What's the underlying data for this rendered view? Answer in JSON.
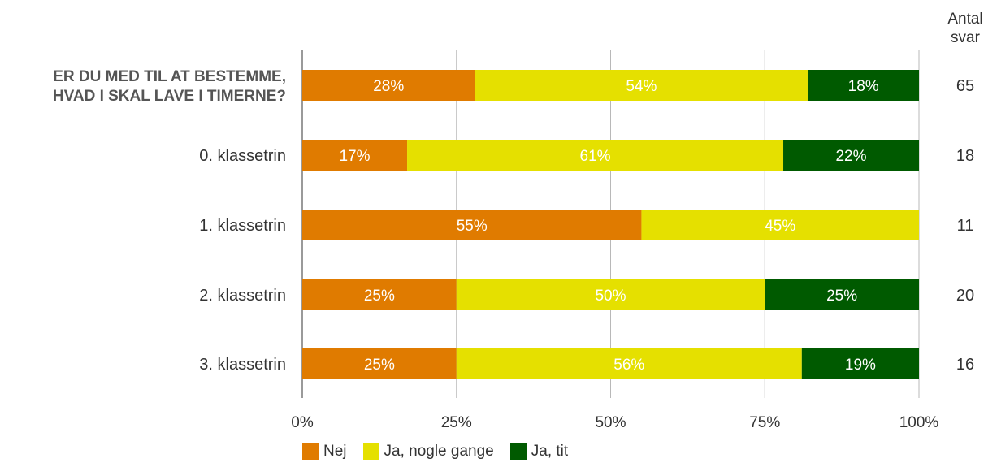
{
  "chart_data": {
    "type": "bar",
    "orientation": "horizontal",
    "stacked": true,
    "percent": true,
    "categories": [
      "ER DU MED TIL AT BESTEMME, HVAD I SKAL LAVE I TIMERNE?",
      "0. klassetrin",
      "1. klassetrin",
      "2. klassetrin",
      "3. klassetrin"
    ],
    "category_lines": [
      [
        "ER DU MED TIL AT BESTEMME,",
        "HVAD I SKAL LAVE I TIMERNE?"
      ],
      [
        "0. klassetrin"
      ],
      [
        "1. klassetrin"
      ],
      [
        "2. klassetrin"
      ],
      [
        "3. klassetrin"
      ]
    ],
    "series": [
      {
        "name": "Nej",
        "color": "#E07B00",
        "values": [
          28,
          17,
          55,
          25,
          25
        ]
      },
      {
        "name": "Ja, nogle gange",
        "color": "#E5E000",
        "values": [
          54,
          61,
          45,
          50,
          56
        ]
      },
      {
        "name": "Ja, tit",
        "color": "#005A00",
        "values": [
          18,
          22,
          0,
          25,
          19
        ]
      }
    ],
    "counts_header": [
      "Antal",
      "svar"
    ],
    "counts": [
      65,
      18,
      11,
      20,
      16
    ],
    "xticks": [
      "0%",
      "25%",
      "50%",
      "75%",
      "100%"
    ],
    "xlim": [
      0,
      100
    ],
    "grid": true,
    "legend_position": "bottom-left"
  }
}
